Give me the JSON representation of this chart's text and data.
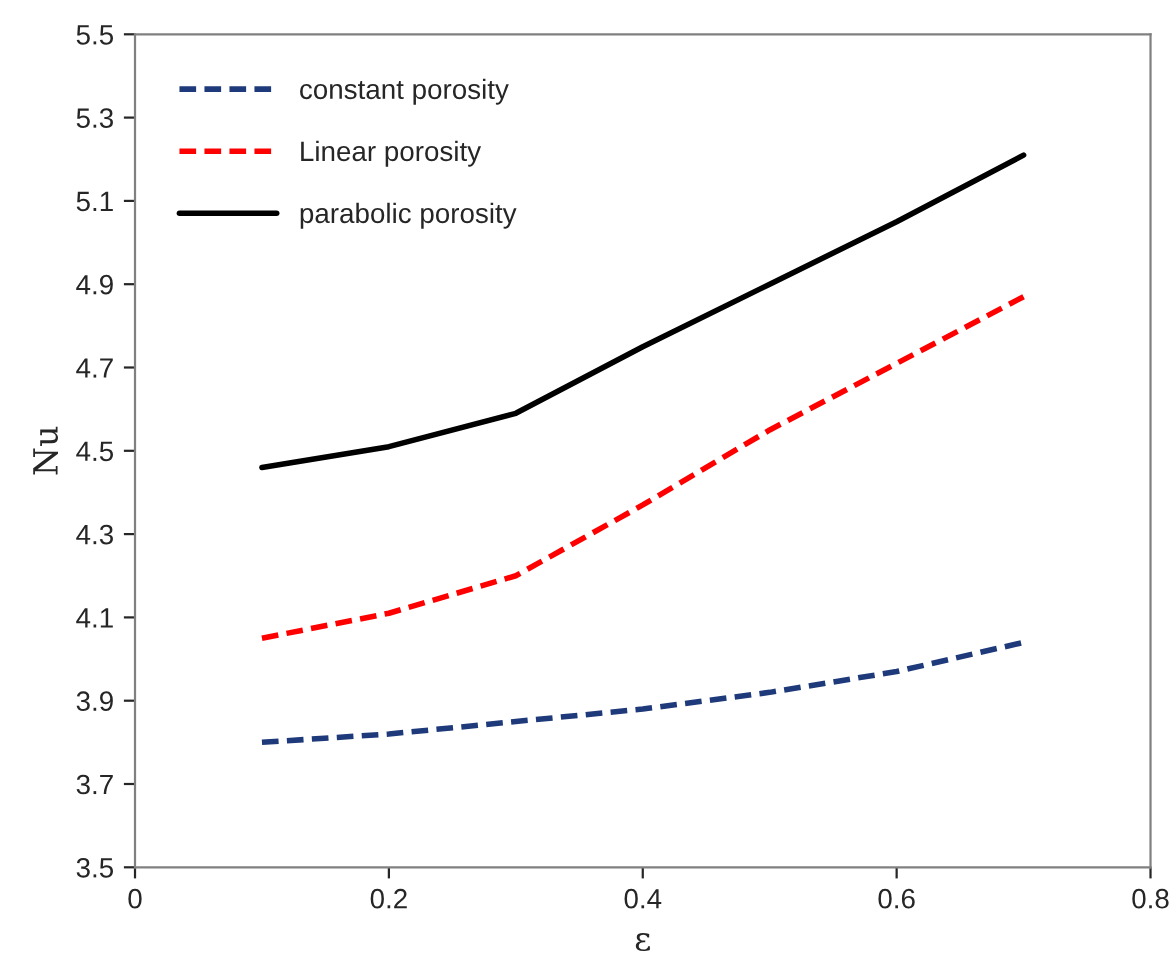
{
  "chart_data": {
    "type": "line",
    "xlabel": "ε",
    "ylabel": "Nu",
    "x": [
      0.1,
      0.2,
      0.3,
      0.4,
      0.5,
      0.6,
      0.7
    ],
    "series": [
      {
        "name": "constant porosity",
        "color": "#1f3a7a",
        "line_style": "dashed",
        "values": [
          3.8,
          3.82,
          3.85,
          3.88,
          3.92,
          3.97,
          4.04
        ]
      },
      {
        "name": "Linear porosity",
        "color": "#ff0000",
        "line_style": "dashed",
        "values": [
          4.05,
          4.11,
          4.2,
          4.37,
          4.55,
          4.71,
          4.87
        ]
      },
      {
        "name": "parabolic porosity",
        "color": "#000000",
        "line_style": "solid",
        "values": [
          4.46,
          4.51,
          4.59,
          4.75,
          4.9,
          5.05,
          5.21
        ]
      }
    ],
    "xlim": [
      0,
      0.8
    ],
    "xticks": [
      0,
      0.2,
      0.4,
      0.6,
      0.8
    ],
    "ylim": [
      3.5,
      5.5
    ],
    "yticks": [
      3.5,
      3.7,
      3.9,
      4.1,
      4.3,
      4.5,
      4.7,
      4.9,
      5.1,
      5.3,
      5.5
    ],
    "grid": false,
    "legend": "top left",
    "marker": "none"
  }
}
